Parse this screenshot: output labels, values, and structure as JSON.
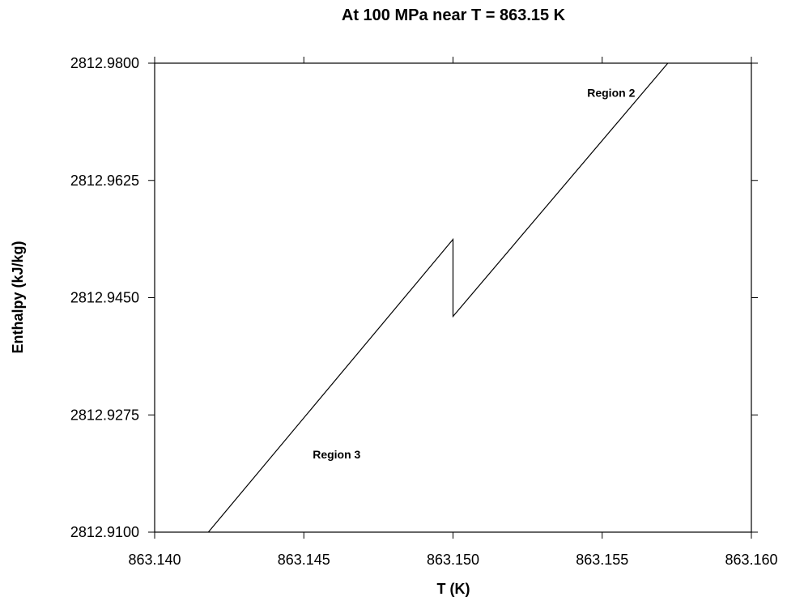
{
  "chart_data": {
    "type": "line",
    "title": "At 100 MPa near T = 863.15 K",
    "xlabel": "T (K)",
    "ylabel": "Enthalpy (kJ/kg)",
    "xlim": [
      863.14,
      863.16
    ],
    "ylim": [
      2812.91,
      2812.98
    ],
    "x_ticks": [
      863.14,
      863.145,
      863.15,
      863.155,
      863.16
    ],
    "x_tick_labels": [
      "863.140",
      "863.145",
      "863.150",
      "863.155",
      "863.160"
    ],
    "y_ticks": [
      2812.91,
      2812.9275,
      2812.945,
      2812.9625,
      2812.98
    ],
    "y_tick_labels": [
      "2812.9100",
      "2812.9275",
      "2812.9450",
      "2812.9625",
      "2812.9800"
    ],
    "grid": false,
    "series": [
      {
        "values": [
          [
            863.1418,
            2812.91
          ],
          [
            863.15,
            2812.9537
          ],
          [
            863.15,
            2812.9422
          ],
          [
            863.1572,
            2812.98
          ]
        ],
        "color": "#000000"
      }
    ],
    "annotations": [
      {
        "text": "Region 2",
        "x": 863.1553,
        "y": 2812.975
      },
      {
        "text": "Region 3",
        "x": 863.1461,
        "y": 2812.921
      }
    ]
  }
}
